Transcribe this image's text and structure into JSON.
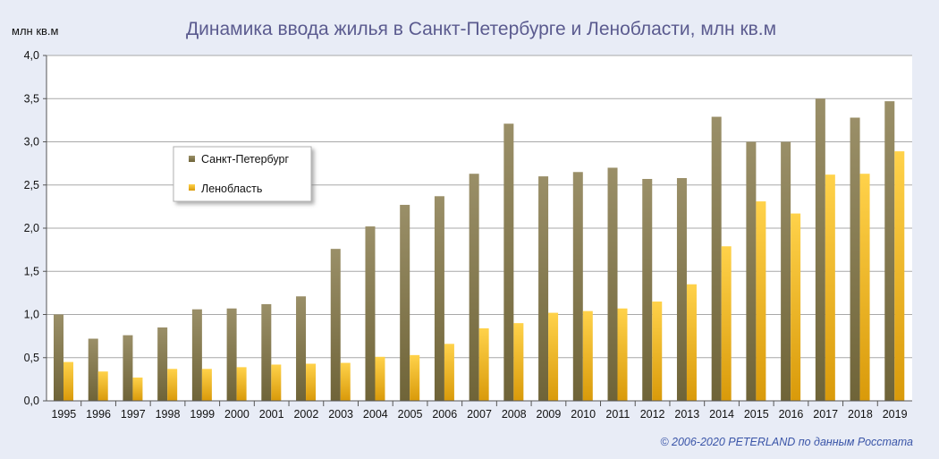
{
  "chart_data": {
    "type": "bar",
    "title": "Динамика ввода жилья в Санкт-Петербурге и Ленобласти,  млн кв.м",
    "ylabel": "млн кв.м",
    "xlabel": "",
    "ylim": [
      0,
      4.0
    ],
    "y_ticks": [
      "0,0",
      "0,5",
      "1,0",
      "1,5",
      "2,0",
      "2,5",
      "3,0",
      "3,5",
      "4,0"
    ],
    "grid": true,
    "legend_position": "left",
    "categories": [
      "1995",
      "1996",
      "1997",
      "1998",
      "1999",
      "2000",
      "2001",
      "2002",
      "2003",
      "2004",
      "2005",
      "2006",
      "2007",
      "2008",
      "2009",
      "2010",
      "2011",
      "2012",
      "2013",
      "2014",
      "2015",
      "2016",
      "2017",
      "2018",
      "2019"
    ],
    "series": [
      {
        "name": "Санкт-Петербург",
        "values": [
          1.0,
          0.72,
          0.76,
          0.85,
          1.06,
          1.07,
          1.12,
          1.21,
          1.76,
          2.02,
          2.27,
          2.37,
          2.63,
          3.21,
          2.6,
          2.65,
          2.7,
          2.57,
          2.58,
          3.29,
          3.0,
          3.0,
          3.5,
          3.28,
          3.47
        ]
      },
      {
        "name": "Ленобласть",
        "values": [
          0.45,
          0.34,
          0.27,
          0.37,
          0.37,
          0.39,
          0.42,
          0.43,
          0.44,
          0.51,
          0.53,
          0.66,
          0.84,
          0.9,
          1.02,
          1.04,
          1.07,
          1.15,
          1.35,
          1.79,
          2.31,
          2.17,
          2.62,
          2.63,
          2.89
        ]
      }
    ],
    "colors": {
      "series_0": "#8c7f55",
      "series_1": "#f2b51c"
    },
    "credit": "© 2006-2020 PETERLAND  по данным Росстата"
  }
}
